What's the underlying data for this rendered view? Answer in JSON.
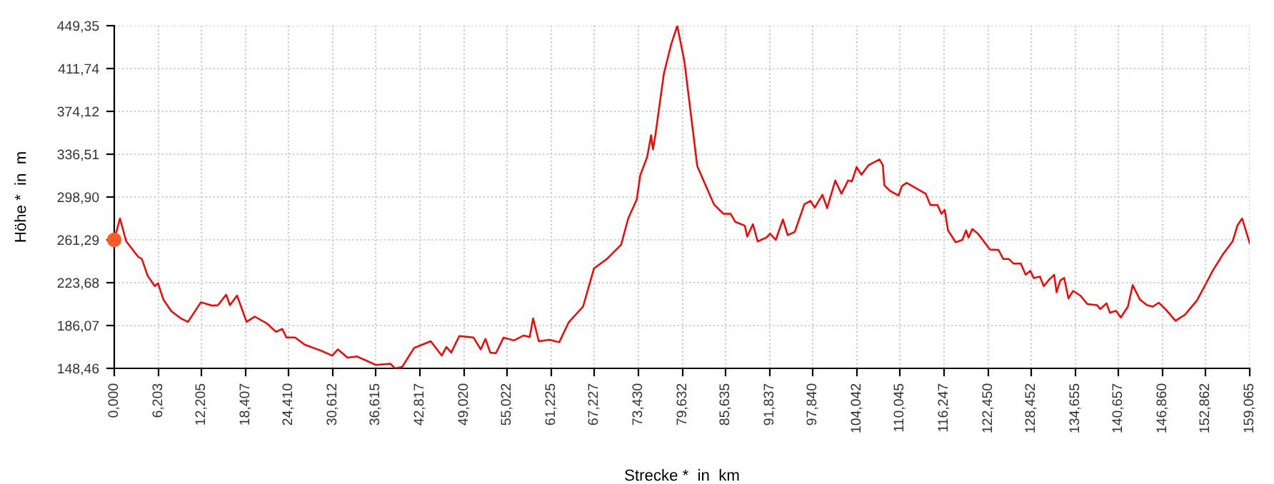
{
  "chart_data": {
    "type": "line",
    "xlabel": "Strecke *  in  km",
    "ylabel": "Höhe *  in  m",
    "xlim": [
      0,
      159.065
    ],
    "ylim": [
      148.46,
      449.35
    ],
    "xticks": [
      {
        "value": 0,
        "label": "0,000"
      },
      {
        "value": 6.203,
        "label": "6,203"
      },
      {
        "value": 12.205,
        "label": "12,205"
      },
      {
        "value": 18.407,
        "label": "18,407"
      },
      {
        "value": 24.41,
        "label": "24,410"
      },
      {
        "value": 30.612,
        "label": "30,612"
      },
      {
        "value": 36.615,
        "label": "36,615"
      },
      {
        "value": 42.817,
        "label": "42,817"
      },
      {
        "value": 49.02,
        "label": "49,020"
      },
      {
        "value": 55.022,
        "label": "55,022"
      },
      {
        "value": 61.225,
        "label": "61,225"
      },
      {
        "value": 67.227,
        "label": "67,227"
      },
      {
        "value": 73.43,
        "label": "73,430"
      },
      {
        "value": 79.632,
        "label": "79,632"
      },
      {
        "value": 85.635,
        "label": "85,635"
      },
      {
        "value": 91.837,
        "label": "91,837"
      },
      {
        "value": 97.84,
        "label": "97,840"
      },
      {
        "value": 104.042,
        "label": "104,042"
      },
      {
        "value": 110.045,
        "label": "110,045"
      },
      {
        "value": 116.247,
        "label": "116,247"
      },
      {
        "value": 122.45,
        "label": "122,450"
      },
      {
        "value": 128.452,
        "label": "128,452"
      },
      {
        "value": 134.655,
        "label": "134,655"
      },
      {
        "value": 140.657,
        "label": "140,657"
      },
      {
        "value": 146.86,
        "label": "146,860"
      },
      {
        "value": 152.862,
        "label": "152,862"
      },
      {
        "value": 159.065,
        "label": "159,065"
      }
    ],
    "yticks": [
      {
        "value": 148.46,
        "label": "148,46"
      },
      {
        "value": 186.07,
        "label": "186,07"
      },
      {
        "value": 223.68,
        "label": "223,68"
      },
      {
        "value": 261.29,
        "label": "261,29"
      },
      {
        "value": 298.9,
        "label": "298,90"
      },
      {
        "value": 336.51,
        "label": "336,51"
      },
      {
        "value": 374.12,
        "label": "374,12"
      },
      {
        "value": 411.74,
        "label": "411,74"
      },
      {
        "value": 449.35,
        "label": "449,35"
      }
    ],
    "grid": true,
    "legend": false,
    "series": [
      {
        "color": "#ff0000",
        "marker": "none",
        "x": [
          0,
          0.8,
          1.67,
          3.33,
          3.87,
          4.67,
          5.67,
          6.13,
          6.87,
          8,
          9.33,
          10.33,
          12.13,
          13.67,
          14.53,
          15.67,
          16.2,
          17.2,
          18.53,
          19.67,
          21.33,
          22.67,
          23.53,
          24.13,
          25.33,
          26.67,
          29,
          30.53,
          31.33,
          32.67,
          34,
          36.67,
          38.67,
          39.33,
          40.33,
          42,
          44.33,
          45.87,
          46.53,
          47.2,
          48.33,
          50.33,
          51.33,
          52,
          52.67,
          53.47,
          54.53,
          56,
          57.33,
          58.2,
          58.67,
          59.47,
          61,
          62.33,
          63.67,
          65.67,
          67.2,
          69,
          71,
          72,
          73.2,
          73.67,
          74.67,
          75.2,
          75.47,
          75.8,
          77,
          78,
          78.87,
          79.87,
          81.67,
          84,
          85.33,
          86.33,
          87,
          88.33,
          88.67,
          89.47,
          90.13,
          91.33,
          91.87,
          92.67,
          93.67,
          94.33,
          95.33,
          96.67,
          97.53,
          98.13,
          99.2,
          99.87,
          101,
          101.87,
          102.8,
          103.33,
          104,
          104.67,
          105.67,
          107.2,
          107.67,
          107.87,
          108.67,
          109.87,
          110.33,
          111,
          113.67,
          114.33,
          115.33,
          115.87,
          116.33,
          116.8,
          117.87,
          118.8,
          119.33,
          119.67,
          120.2,
          121,
          122.67,
          123.87,
          124.53,
          125.33,
          126,
          127,
          127.67,
          128.33,
          128.8,
          129.67,
          130.2,
          131,
          131.67,
          132,
          132.53,
          133.07,
          133.67,
          134.33,
          135.33,
          136.33,
          137.67,
          138.13,
          139,
          139.47,
          140.33,
          141,
          142,
          142.67,
          143.67,
          144.67,
          145.47,
          146.33,
          147.33,
          148.67,
          150,
          151.67,
          153,
          153.87,
          155.33,
          156.67,
          157.33,
          158,
          159.065
        ],
        "values": [
          261.3,
          280.1,
          260.0,
          246.6,
          244.5,
          229.9,
          220.7,
          223.2,
          209.0,
          198.6,
          192.3,
          189.3,
          206.5,
          203.6,
          204.0,
          213.2,
          204.0,
          212.4,
          189.3,
          193.9,
          188.1,
          180.5,
          183.1,
          175.5,
          175.5,
          169.3,
          163.9,
          159.7,
          165.1,
          157.9,
          158.9,
          151.4,
          152.6,
          148.5,
          149.7,
          166.4,
          172.3,
          159.7,
          167.3,
          162.3,
          176.8,
          175.5,
          165.1,
          174.3,
          162.3,
          161.8,
          175.5,
          173.0,
          177.3,
          176.0,
          192.3,
          172.3,
          173.5,
          171.4,
          189.0,
          202.7,
          236.2,
          244.5,
          257.0,
          280.1,
          296.8,
          317.7,
          334.4,
          353.2,
          340.7,
          353.2,
          407.5,
          432.6,
          449.3,
          418.0,
          326.0,
          292.6,
          284.2,
          284.2,
          277.1,
          273.8,
          264.2,
          275.1,
          260.0,
          263.3,
          266.7,
          261.3,
          279.2,
          265.4,
          268.3,
          292.6,
          295.5,
          289.6,
          300.9,
          289.2,
          313.4,
          301.8,
          313.4,
          312.7,
          325.2,
          318.5,
          326.9,
          331.9,
          326.9,
          309.3,
          304.3,
          300.2,
          308.4,
          311.4,
          301.8,
          291.8,
          291.8,
          284.2,
          287.6,
          269.6,
          259.2,
          261.3,
          269.6,
          263.3,
          270.8,
          266.7,
          252.9,
          252.5,
          244.5,
          244.5,
          240.4,
          240.4,
          230.7,
          234.1,
          227.8,
          229.1,
          220.7,
          226.6,
          230.7,
          215.3,
          225.7,
          227.8,
          209.9,
          216.5,
          212.4,
          204.9,
          204.0,
          200.6,
          205.6,
          197.4,
          199.0,
          193.1,
          202.7,
          221.6,
          209.0,
          204.0,
          202.7,
          206.1,
          199.9,
          190.2,
          195.6,
          208.1,
          223.7,
          234.1,
          248.8,
          260.0,
          273.8,
          280.1,
          258.3
        ]
      },
      {
        "type": "scatter",
        "color": "#ff5a28",
        "marker": "circle",
        "x": [
          0
        ],
        "values": [
          261.3
        ]
      }
    ]
  }
}
